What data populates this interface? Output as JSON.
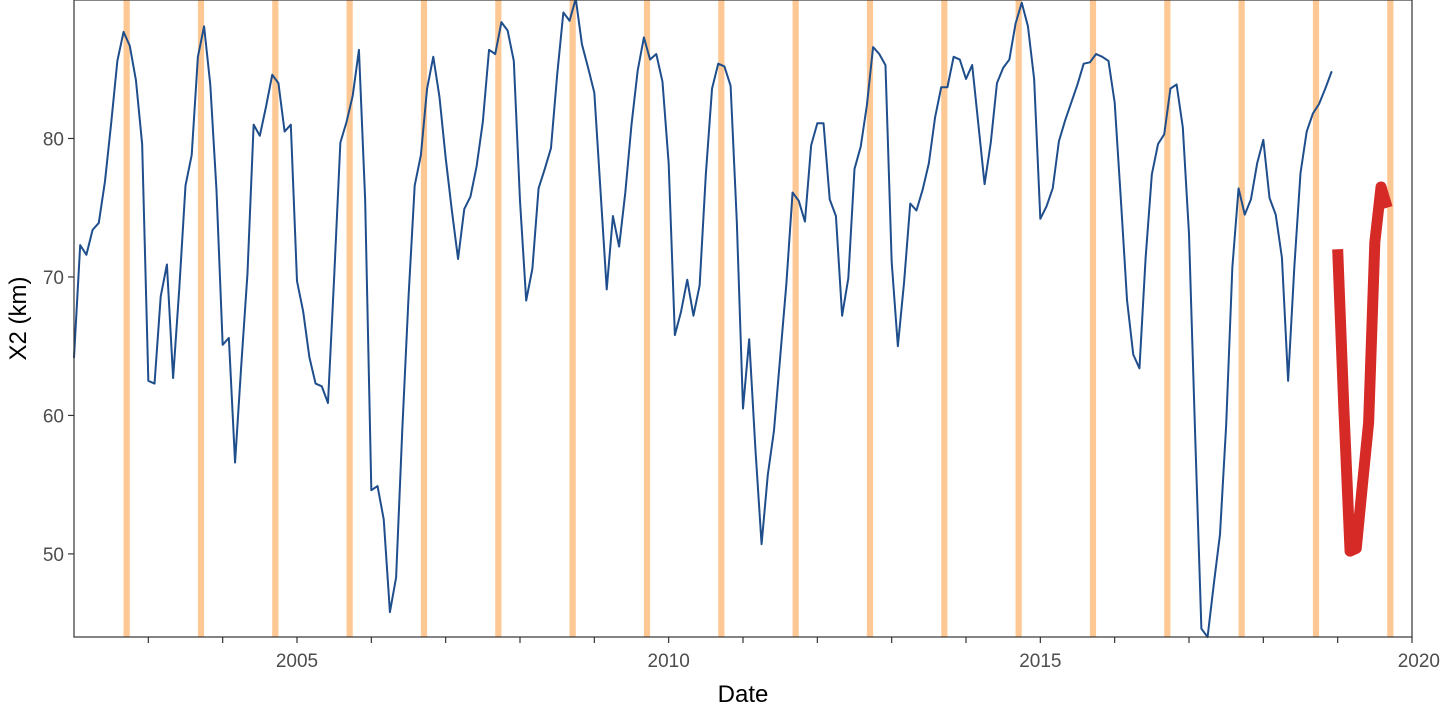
{
  "chart_data": {
    "type": "line",
    "xlabel": "Date",
    "ylabel": "X2 (km)",
    "xlim": [
      2002.0,
      2020.0
    ],
    "ylim": [
      44.0,
      90.0
    ],
    "x_ticks": [
      2005,
      2010,
      2015,
      2020
    ],
    "x_minor_ticks": [
      2003,
      2004,
      2006,
      2007,
      2008,
      2009,
      2011,
      2012,
      2013,
      2014,
      2016,
      2017,
      2018,
      2019
    ],
    "y_ticks": [
      50,
      60,
      70,
      80
    ],
    "grid": false,
    "legend": "none",
    "highlight_band_months": [
      "2002-09",
      "2003-09",
      "2004-09",
      "2005-09",
      "2006-09",
      "2007-09",
      "2008-09",
      "2009-09",
      "2010-09",
      "2011-09",
      "2012-09",
      "2013-09",
      "2014-09",
      "2015-09",
      "2016-09",
      "2017-09",
      "2018-09",
      "2019-09"
    ],
    "series": [
      {
        "color": "#1f4e8c",
        "line_width": "thin",
        "x": [
          "2002-01",
          "2002-02",
          "2002-03",
          "2002-04",
          "2002-05",
          "2002-06",
          "2002-07",
          "2002-08",
          "2002-09",
          "2002-10",
          "2002-11",
          "2002-12",
          "2003-01",
          "2003-02",
          "2003-03",
          "2003-04",
          "2003-05",
          "2003-06",
          "2003-07",
          "2003-08",
          "2003-09",
          "2003-10",
          "2003-11",
          "2003-12",
          "2004-01",
          "2004-02",
          "2004-03",
          "2004-04",
          "2004-05",
          "2004-06",
          "2004-07",
          "2004-08",
          "2004-09",
          "2004-10",
          "2004-11",
          "2004-12",
          "2005-01",
          "2005-02",
          "2005-03",
          "2005-04",
          "2005-05",
          "2005-06",
          "2005-07",
          "2005-08",
          "2005-09",
          "2005-10",
          "2005-11",
          "2005-12",
          "2006-01",
          "2006-02",
          "2006-03",
          "2006-04",
          "2006-05",
          "2006-06",
          "2006-07",
          "2006-08",
          "2006-09",
          "2006-10",
          "2006-11",
          "2006-12",
          "2007-01",
          "2007-02",
          "2007-03",
          "2007-04",
          "2007-05",
          "2007-06",
          "2007-07",
          "2007-08",
          "2007-09",
          "2007-10",
          "2007-11",
          "2007-12",
          "2008-01",
          "2008-02",
          "2008-03",
          "2008-04",
          "2008-05",
          "2008-06",
          "2008-07",
          "2008-08",
          "2008-09",
          "2008-10",
          "2008-11",
          "2008-12",
          "2009-01",
          "2009-02",
          "2009-03",
          "2009-04",
          "2009-05",
          "2009-06",
          "2009-07",
          "2009-08",
          "2009-09",
          "2009-10",
          "2009-11",
          "2009-12",
          "2010-01",
          "2010-02",
          "2010-03",
          "2010-04",
          "2010-05",
          "2010-06",
          "2010-07",
          "2010-08",
          "2010-09",
          "2010-10",
          "2010-11",
          "2010-12",
          "2011-01",
          "2011-02",
          "2011-03",
          "2011-04",
          "2011-05",
          "2011-06",
          "2011-07",
          "2011-08",
          "2011-09",
          "2011-10",
          "2011-11",
          "2011-12",
          "2012-01",
          "2012-02",
          "2012-03",
          "2012-04",
          "2012-05",
          "2012-06",
          "2012-07",
          "2012-08",
          "2012-09",
          "2012-10",
          "2012-11",
          "2012-12",
          "2013-01",
          "2013-02",
          "2013-03",
          "2013-04",
          "2013-05",
          "2013-06",
          "2013-07",
          "2013-08",
          "2013-09",
          "2013-10",
          "2013-11",
          "2013-12",
          "2014-01",
          "2014-02",
          "2014-03",
          "2014-04",
          "2014-05",
          "2014-06",
          "2014-07",
          "2014-08",
          "2014-09",
          "2014-10",
          "2014-11",
          "2014-12",
          "2015-01",
          "2015-02",
          "2015-03",
          "2015-04",
          "2015-05",
          "2015-06",
          "2015-07",
          "2015-08",
          "2015-09",
          "2015-10",
          "2015-11",
          "2015-12",
          "2016-01",
          "2016-02",
          "2016-03",
          "2016-04",
          "2016-05",
          "2016-06",
          "2016-07",
          "2016-08",
          "2016-09",
          "2016-10",
          "2016-11",
          "2016-12",
          "2017-01",
          "2017-02",
          "2017-03",
          "2017-04",
          "2017-05",
          "2017-06",
          "2017-07",
          "2017-08",
          "2017-09",
          "2017-10",
          "2017-11",
          "2017-12",
          "2018-01",
          "2018-02",
          "2018-03",
          "2018-04",
          "2018-05",
          "2018-06",
          "2018-07",
          "2018-08",
          "2018-09",
          "2018-10",
          "2018-11",
          "2018-12"
        ],
        "values": [
          64.2,
          72.3,
          71.6,
          73.4,
          73.9,
          76.9,
          81.1,
          85.6,
          87.7,
          86.7,
          84.2,
          79.6,
          62.5,
          62.3,
          68.6,
          70.9,
          62.7,
          69.2,
          76.6,
          78.8,
          85.9,
          88.1,
          83.9,
          76.3,
          65.1,
          65.6,
          56.6,
          63.6,
          70.2,
          81.0,
          80.2,
          82.3,
          84.6,
          84.0,
          80.5,
          81.0,
          69.7,
          67.5,
          64.2,
          62.3,
          62.1,
          60.9,
          70.0,
          79.7,
          81.2,
          83.1,
          86.4,
          75.6,
          54.6,
          54.9,
          52.5,
          45.8,
          48.3,
          59.0,
          68.5,
          76.6,
          78.8,
          83.6,
          85.9,
          83.0,
          78.6,
          74.8,
          71.3,
          74.9,
          75.8,
          78.0,
          81.2,
          86.4,
          86.1,
          88.4,
          87.8,
          85.6,
          75.5,
          68.3,
          70.6,
          76.4,
          77.8,
          79.3,
          84.6,
          89.1,
          88.5,
          90.1,
          86.8,
          85.1,
          83.3,
          76.2,
          69.1,
          74.4,
          72.2,
          76.1,
          81.0,
          84.9,
          87.3,
          85.7,
          86.1,
          84.1,
          78.2,
          65.8,
          67.5,
          69.8,
          67.2,
          69.4,
          77.4,
          83.6,
          85.4,
          85.2,
          83.8,
          74.0,
          60.5,
          65.5,
          57.6,
          50.7,
          55.7,
          58.9,
          64.2,
          69.5,
          76.1,
          75.5,
          74.0,
          79.5,
          81.1,
          81.1,
          75.6,
          74.4,
          67.2,
          69.9,
          77.8,
          79.4,
          82.4,
          86.6,
          86.1,
          85.3,
          71.1,
          65.0,
          69.6,
          75.3,
          74.8,
          76.3,
          78.2,
          81.5,
          83.7,
          83.7,
          85.9,
          85.7,
          84.3,
          85.3,
          81.0,
          76.7,
          79.7,
          84.0,
          85.1,
          85.7,
          88.3,
          89.8,
          88.1,
          84.3,
          74.2,
          75.1,
          76.4,
          79.8,
          81.3,
          82.6,
          83.9,
          85.4,
          85.5,
          86.1,
          85.9,
          85.6,
          82.6,
          75.6,
          68.3,
          64.4,
          63.4,
          71.4,
          77.4,
          79.6,
          80.3,
          83.6,
          83.9,
          80.8,
          73.1,
          58.5,
          44.6,
          44.0,
          47.8,
          51.4,
          59.3,
          70.7,
          76.4,
          74.5,
          75.6,
          78.2,
          79.9,
          75.7,
          74.5,
          71.4,
          62.5,
          70.7,
          77.5,
          80.5,
          81.8,
          82.5,
          83.6,
          84.8
        ]
      },
      {
        "color": "#d62a26",
        "line_width": "thick",
        "x": [
          "2019-01",
          "2019-02",
          "2019-03",
          "2019-04",
          "2019-05",
          "2019-06",
          "2019-07",
          "2019-08",
          "2019-09"
        ],
        "values": [
          72.0,
          60.5,
          50.2,
          50.4,
          55.0,
          59.5,
          72.5,
          76.5,
          75.0
        ]
      }
    ]
  }
}
